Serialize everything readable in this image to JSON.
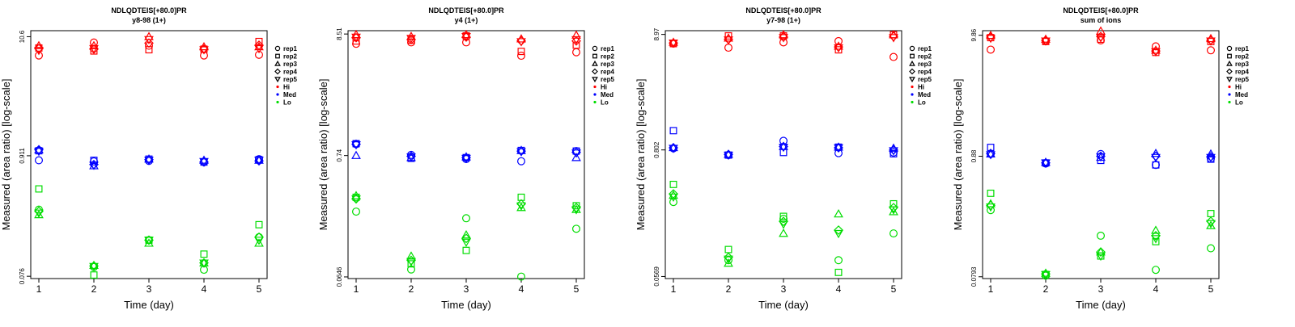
{
  "colors": {
    "Hi": "#ff0000",
    "Med": "#0000ff",
    "Lo": "#00dd00",
    "axis": "#000000"
  },
  "legend": {
    "placement": "right",
    "shapes": [
      {
        "label": "rep1",
        "symbol": "circle"
      },
      {
        "label": "rep2",
        "symbol": "square"
      },
      {
        "label": "rep3",
        "symbol": "triangle-up"
      },
      {
        "label": "rep4",
        "symbol": "diamond"
      },
      {
        "label": "rep5",
        "symbol": "triangle-down"
      }
    ],
    "levels": [
      {
        "label": "Hi",
        "color": "#ff0000"
      },
      {
        "label": "Med",
        "color": "#0000ff"
      },
      {
        "label": "Lo",
        "color": "#00dd00"
      }
    ]
  },
  "chart_data": [
    {
      "type": "scatter",
      "title": "NDLQDTEIS[+80.0]PR",
      "subtitle": "y8-98 (1+)",
      "xlabel": "Time (day)",
      "ylabel": "Measured (area ratio) [log-scale]",
      "log_y": true,
      "x_ticks": [
        1,
        2,
        3,
        4,
        5
      ],
      "y_ticks": [
        "0.076",
        "0.911",
        "10.6"
      ],
      "ylim": [
        0.0725,
        12.0
      ],
      "grid": false,
      "series": [
        {
          "level": "Hi",
          "rep": "rep1",
          "y": [
            7.2,
            9.4,
            8.8,
            7.2,
            7.3
          ]
        },
        {
          "level": "Hi",
          "rep": "rep2",
          "y": [
            8.4,
            7.9,
            8.1,
            8.2,
            9.6
          ]
        },
        {
          "level": "Hi",
          "rep": "rep3",
          "y": [
            8.8,
            8.8,
            10.6,
            8.6,
            8.6
          ]
        },
        {
          "level": "Hi",
          "rep": "rep4",
          "y": [
            8.3,
            8.2,
            9.3,
            8.2,
            8.9
          ]
        },
        {
          "level": "Hi",
          "rep": "rep5",
          "y": [
            8.0,
            8.3,
            10.0,
            8.1,
            8.3
          ]
        },
        {
          "level": "Med",
          "rep": "rep1",
          "y": [
            0.83,
            0.81,
            0.82,
            0.8,
            0.85
          ]
        },
        {
          "level": "Med",
          "rep": "rep2",
          "y": [
            1.01,
            0.83,
            0.85,
            0.8,
            0.84
          ]
        },
        {
          "level": "Med",
          "rep": "rep3",
          "y": [
            1.03,
            0.74,
            0.85,
            0.83,
            0.83
          ]
        },
        {
          "level": "Med",
          "rep": "rep4",
          "y": [
            1.03,
            0.76,
            0.84,
            0.8,
            0.82
          ]
        },
        {
          "level": "Med",
          "rep": "rep5",
          "y": [
            1.0,
            0.75,
            0.83,
            0.81,
            0.83
          ]
        },
        {
          "level": "Lo",
          "rep": "rep1",
          "y": [
            0.3,
            0.092,
            0.16,
            0.087,
            0.17
          ]
        },
        {
          "level": "Lo",
          "rep": "rep2",
          "y": [
            0.46,
            0.078,
            0.16,
            0.12,
            0.22
          ]
        },
        {
          "level": "Lo",
          "rep": "rep3",
          "y": [
            0.27,
            0.095,
            0.15,
            0.1,
            0.15
          ]
        },
        {
          "level": "Lo",
          "rep": "rep4",
          "y": [
            0.29,
            0.094,
            0.16,
            0.1,
            0.17
          ]
        },
        {
          "level": "Lo",
          "rep": "rep5",
          "y": [
            0.28,
            0.093,
            0.16,
            0.1,
            0.16
          ]
        }
      ]
    },
    {
      "type": "scatter",
      "title": "NDLQDTEIS[+80.0]PR",
      "subtitle": "y4 (1+)",
      "xlabel": "Time (day)",
      "ylabel": "Measured (area ratio) [log-scale]",
      "log_y": true,
      "x_ticks": [
        1,
        2,
        3,
        4,
        5
      ],
      "y_ticks": [
        "0.0646",
        "0.74",
        "8.51"
      ],
      "ylim": [
        0.0625,
        9.1
      ],
      "grid": false,
      "series": [
        {
          "level": "Hi",
          "rep": "rep1",
          "y": [
            7.0,
            7.2,
            7.2,
            5.5,
            5.9
          ]
        },
        {
          "level": "Hi",
          "rep": "rep2",
          "y": [
            7.4,
            7.5,
            8.2,
            6.0,
            6.8
          ]
        },
        {
          "level": "Hi",
          "rep": "rep3",
          "y": [
            8.4,
            8.1,
            8.4,
            7.7,
            8.3
          ]
        },
        {
          "level": "Hi",
          "rep": "rep4",
          "y": [
            7.9,
            7.6,
            8.0,
            7.4,
            7.4
          ]
        },
        {
          "level": "Hi",
          "rep": "rep5",
          "y": [
            8.0,
            7.8,
            8.1,
            7.3,
            7.6
          ]
        },
        {
          "level": "Med",
          "rep": "rep1",
          "y": [
            0.93,
            0.75,
            0.69,
            0.66,
            0.81
          ]
        },
        {
          "level": "Med",
          "rep": "rep2",
          "y": [
            0.94,
            0.7,
            0.71,
            0.82,
            0.81
          ]
        },
        {
          "level": "Med",
          "rep": "rep3",
          "y": [
            0.74,
            0.71,
            0.72,
            0.82,
            0.71
          ]
        },
        {
          "level": "Med",
          "rep": "rep4",
          "y": [
            0.93,
            0.73,
            0.71,
            0.81,
            0.79
          ]
        },
        {
          "level": "Med",
          "rep": "rep5",
          "y": [
            0.92,
            0.72,
            0.7,
            0.8,
            0.78
          ]
        },
        {
          "level": "Lo",
          "rep": "rep1",
          "y": [
            0.24,
            0.075,
            0.21,
            0.065,
            0.17
          ]
        },
        {
          "level": "Lo",
          "rep": "rep2",
          "y": [
            0.32,
            0.084,
            0.11,
            0.32,
            0.27
          ]
        },
        {
          "level": "Lo",
          "rep": "rep3",
          "y": [
            0.33,
            0.098,
            0.15,
            0.26,
            0.25
          ]
        },
        {
          "level": "Lo",
          "rep": "rep4",
          "y": [
            0.31,
            0.09,
            0.14,
            0.28,
            0.26
          ]
        },
        {
          "level": "Lo",
          "rep": "rep5",
          "y": [
            0.31,
            0.088,
            0.13,
            0.27,
            0.25
          ]
        }
      ]
    },
    {
      "type": "scatter",
      "title": "NDLQDTEIS[+80.0]PR",
      "subtitle": "y7-98 (1+)",
      "xlabel": "Time (day)",
      "ylabel": "Measured (area ratio) [log-scale]",
      "log_y": true,
      "x_ticks": [
        1,
        2,
        3,
        4,
        5
      ],
      "y_ticks": [
        "0.0569",
        "0.802",
        "8.97"
      ],
      "ylim": [
        0.0545,
        9.7
      ],
      "grid": false,
      "series": [
        {
          "level": "Hi",
          "rep": "rep1",
          "y": [
            7.4,
            6.8,
            7.6,
            7.8,
            5.6
          ]
        },
        {
          "level": "Hi",
          "rep": "rep2",
          "y": [
            7.4,
            8.7,
            8.7,
            6.5,
            8.9
          ]
        },
        {
          "level": "Hi",
          "rep": "rep3",
          "y": [
            7.6,
            8.3,
            8.9,
            7.0,
            8.9
          ]
        },
        {
          "level": "Hi",
          "rep": "rep4",
          "y": [
            7.5,
            8.1,
            8.5,
            6.9,
            8.6
          ]
        },
        {
          "level": "Hi",
          "rep": "rep5",
          "y": [
            7.5,
            8.0,
            8.4,
            6.8,
            8.4
          ]
        },
        {
          "level": "Med",
          "rep": "rep1",
          "y": [
            0.83,
            0.72,
            0.97,
            0.75,
            0.76
          ]
        },
        {
          "level": "Med",
          "rep": "rep2",
          "y": [
            1.2,
            0.72,
            0.76,
            0.85,
            0.74
          ]
        },
        {
          "level": "Med",
          "rep": "rep3",
          "y": [
            0.84,
            0.73,
            0.86,
            0.85,
            0.83
          ]
        },
        {
          "level": "Med",
          "rep": "rep4",
          "y": [
            0.84,
            0.73,
            0.86,
            0.84,
            0.8
          ]
        },
        {
          "level": "Med",
          "rep": "rep5",
          "y": [
            0.83,
            0.72,
            0.85,
            0.84,
            0.79
          ]
        },
        {
          "level": "Lo",
          "rep": "rep1",
          "y": [
            0.27,
            0.08,
            0.19,
            0.08,
            0.14
          ]
        },
        {
          "level": "Lo",
          "rep": "rep2",
          "y": [
            0.39,
            0.1,
            0.2,
            0.062,
            0.26
          ]
        },
        {
          "level": "Lo",
          "rep": "rep3",
          "y": [
            0.31,
            0.075,
            0.14,
            0.21,
            0.22
          ]
        },
        {
          "level": "Lo",
          "rep": "rep4",
          "y": [
            0.32,
            0.085,
            0.18,
            0.15,
            0.24
          ]
        },
        {
          "level": "Lo",
          "rep": "rep5",
          "y": [
            0.3,
            0.082,
            0.17,
            0.14,
            0.23
          ]
        }
      ]
    },
    {
      "type": "scatter",
      "title": "NDLQDTEIS[+80.0]PR",
      "subtitle": "sum of ions",
      "xlabel": "Time (day)",
      "ylabel": "Measured (area ratio) [log-scale]",
      "log_y": true,
      "x_ticks": [
        1,
        2,
        3,
        4,
        5
      ],
      "y_ticks": [
        "0.0793",
        "0.88",
        "9.86"
      ],
      "ylim": [
        0.0765,
        10.8
      ],
      "grid": false,
      "series": [
        {
          "level": "Hi",
          "rep": "rep1",
          "y": [
            7.4,
            8.8,
            8.9,
            7.9,
            7.3
          ]
        },
        {
          "level": "Hi",
          "rep": "rep2",
          "y": [
            9.4,
            8.7,
            9.1,
            7.0,
            8.7
          ]
        },
        {
          "level": "Hi",
          "rep": "rep3",
          "y": [
            9.8,
            9.1,
            10.7,
            7.3,
            9.2
          ]
        },
        {
          "level": "Hi",
          "rep": "rep4",
          "y": [
            9.5,
            8.9,
            9.6,
            7.2,
            8.9
          ]
        },
        {
          "level": "Hi",
          "rep": "rep5",
          "y": [
            9.3,
            8.8,
            9.4,
            7.1,
            8.8
          ]
        },
        {
          "level": "Med",
          "rep": "rep1",
          "y": [
            0.92,
            0.76,
            0.92,
            0.74,
            0.84
          ]
        },
        {
          "level": "Med",
          "rep": "rep2",
          "y": [
            1.05,
            0.77,
            0.81,
            0.74,
            0.83
          ]
        },
        {
          "level": "Med",
          "rep": "rep3",
          "y": [
            0.92,
            0.78,
            0.86,
            0.93,
            0.92
          ]
        },
        {
          "level": "Med",
          "rep": "rep4",
          "y": [
            0.93,
            0.77,
            0.88,
            0.88,
            0.87
          ]
        },
        {
          "level": "Med",
          "rep": "rep5",
          "y": [
            0.91,
            0.77,
            0.87,
            0.86,
            0.86
          ]
        },
        {
          "level": "Lo",
          "rep": "rep1",
          "y": [
            0.3,
            0.081,
            0.18,
            0.091,
            0.14
          ]
        },
        {
          "level": "Lo",
          "rep": "rep2",
          "y": [
            0.42,
            0.083,
            0.12,
            0.16,
            0.28
          ]
        },
        {
          "level": "Lo",
          "rep": "rep3",
          "y": [
            0.34,
            0.085,
            0.13,
            0.2,
            0.22
          ]
        },
        {
          "level": "Lo",
          "rep": "rep4",
          "y": [
            0.33,
            0.084,
            0.13,
            0.18,
            0.24
          ]
        },
        {
          "level": "Lo",
          "rep": "rep5",
          "y": [
            0.32,
            0.083,
            0.12,
            0.17,
            0.23
          ]
        }
      ]
    }
  ]
}
